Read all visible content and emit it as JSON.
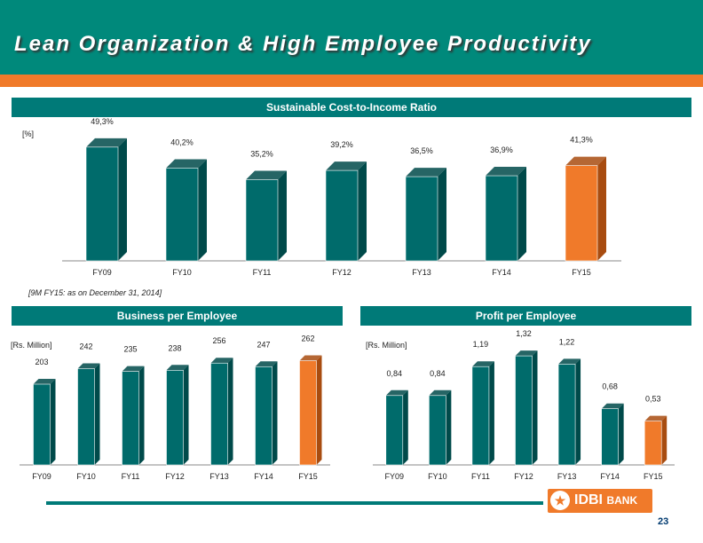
{
  "header": {
    "title": "Lean Organization & High Employee Productivity"
  },
  "colors": {
    "teal": "#006b6b",
    "teal_dark": "#004a4a",
    "orange": "#f07a2a",
    "orange_dark": "#a84c10",
    "header": "#00897b"
  },
  "chart_data": [
    {
      "type": "bar",
      "title": "Sustainable Cost-to-Income Ratio",
      "unit_label": "[%]",
      "categories": [
        "FY09",
        "FY10",
        "FY11",
        "FY12",
        "FY13",
        "FY14",
        "FY15"
      ],
      "values": [
        49.3,
        40.2,
        35.2,
        39.2,
        36.5,
        36.9,
        41.3
      ],
      "value_labels": [
        "49,3%",
        "40,2%",
        "35,2%",
        "39,2%",
        "36,5%",
        "36,9%",
        "41,3%"
      ],
      "highlight": "FY15",
      "ylim": [
        0,
        50
      ]
    },
    {
      "type": "bar",
      "title": "Business per Employee",
      "unit_label": "[Rs. Million]",
      "categories": [
        "FY09",
        "FY10",
        "FY11",
        "FY12",
        "FY13",
        "FY14",
        "FY15"
      ],
      "values": [
        203,
        242,
        235,
        238,
        256,
        247,
        262
      ],
      "value_labels": [
        "203",
        "242",
        "235",
        "238",
        "256",
        "247",
        "262"
      ],
      "highlight": "FY15",
      "ylim": [
        0,
        290
      ]
    },
    {
      "type": "bar",
      "title": "Profit per Employee",
      "unit_label": "[Rs. Million]",
      "categories": [
        "FY09",
        "FY10",
        "FY11",
        "FY12",
        "FY13",
        "FY14",
        "FY15"
      ],
      "values": [
        0.84,
        0.84,
        1.19,
        1.32,
        1.22,
        0.68,
        0.53
      ],
      "value_labels": [
        "0,84",
        "0,84",
        "1,19",
        "1,32",
        "1,22",
        "0,68",
        "0,53"
      ],
      "highlight": "FY15",
      "ylim": [
        0,
        1.45
      ]
    }
  ],
  "footnote": "[9M FY15: as on December 31, 2014]",
  "logo": {
    "mark": "★",
    "brand": "IDBI",
    "suffix": "BANK"
  },
  "page_number": "23"
}
